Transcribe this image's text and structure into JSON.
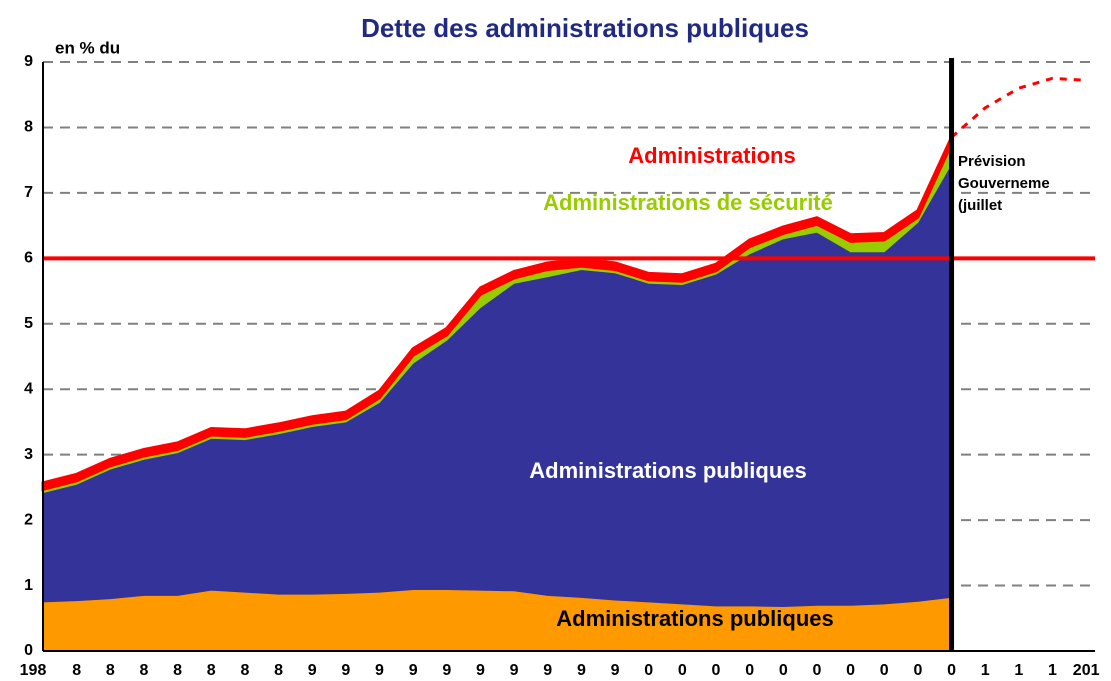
{
  "chart_data": {
    "type": "stacked_area",
    "title": "Dette des administrations publiques",
    "y_label": "en % du",
    "annotation": [
      "Prévision",
      "Gouverneme",
      "(juillet"
    ],
    "categories": [
      "198",
      "8",
      "8",
      "8",
      "8",
      "8",
      "8",
      "8",
      "9",
      "9",
      "9",
      "9",
      "9",
      "9",
      "9",
      "9",
      "9",
      "9",
      "0",
      "0",
      "0",
      "0",
      "0",
      "0",
      "0",
      "0",
      "0",
      "0",
      "1",
      "1",
      "1",
      "201"
    ],
    "series": [
      {
        "name": "Administrations publiques",
        "color": "#ff9900",
        "label_color": "#000000",
        "values": [
          0.75,
          0.77,
          0.8,
          0.85,
          0.85,
          0.93,
          0.9,
          0.87,
          0.87,
          0.88,
          0.9,
          0.94,
          0.94,
          0.93,
          0.92,
          0.85,
          0.82,
          0.78,
          0.75,
          0.72,
          0.69,
          0.69,
          0.68,
          0.7,
          0.7,
          0.72,
          0.76,
          0.82,
          null,
          null,
          null,
          null
        ]
      },
      {
        "name": "Administrations publiques",
        "color": "#333399",
        "label_color": "#ffffff",
        "values": [
          1.67,
          1.78,
          1.98,
          2.08,
          2.18,
          2.32,
          2.33,
          2.45,
          2.56,
          2.62,
          2.9,
          3.46,
          3.81,
          4.32,
          4.7,
          4.87,
          5.01,
          5.0,
          4.87,
          4.88,
          5.07,
          5.38,
          5.62,
          5.7,
          5.4,
          5.38,
          5.79,
          6.63,
          null,
          null,
          null,
          null
        ]
      },
      {
        "name": "Administrations de sécurité",
        "color": "#99cc00",
        "label_color": "#99cc00",
        "values": [
          0.05,
          0.05,
          0.05,
          0.05,
          0.05,
          0.05,
          0.05,
          0.05,
          0.05,
          0.05,
          0.07,
          0.12,
          0.08,
          0.2,
          0.08,
          0.11,
          0.05,
          0.05,
          0.05,
          0.05,
          0.05,
          0.11,
          0.08,
          0.12,
          0.16,
          0.18,
          0.08,
          0.3,
          null,
          null,
          null,
          null
        ]
      },
      {
        "name": "Administrations",
        "color": "#ff0000",
        "label_color": "#ff0000",
        "values": [
          0.1,
          0.1,
          0.1,
          0.1,
          0.1,
          0.1,
          0.1,
          0.1,
          0.1,
          0.1,
          0.1,
          0.1,
          0.1,
          0.1,
          0.1,
          0.1,
          0.1,
          0.1,
          0.1,
          0.1,
          0.1,
          0.1,
          0.1,
          0.1,
          0.1,
          0.1,
          0.1,
          0.1,
          null,
          null,
          null,
          null
        ]
      }
    ],
    "forecast": {
      "color": "#ff0000",
      "dashed": true,
      "values": [
        null,
        null,
        null,
        null,
        null,
        null,
        null,
        null,
        null,
        null,
        null,
        null,
        null,
        null,
        null,
        null,
        null,
        null,
        null,
        null,
        null,
        null,
        null,
        null,
        null,
        null,
        null,
        7.85,
        8.3,
        8.6,
        8.75,
        8.72
      ]
    },
    "reference_line": {
      "value": 6,
      "color": "#ff0000"
    },
    "divider_index": 27,
    "ylim": [
      0,
      9
    ],
    "yticks": [
      0,
      1,
      2,
      3,
      4,
      5,
      6,
      7,
      8,
      9
    ],
    "grid": true
  }
}
